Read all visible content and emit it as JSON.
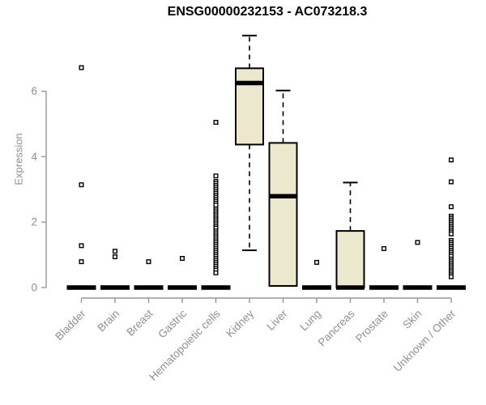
{
  "colors": {
    "box_fill": "#ECE8CD",
    "box_stroke": "#000000",
    "median": "#000000",
    "axis": "#979797",
    "tick_label": "#8f8f8f",
    "title": "#000000",
    "point_fill": "#ffffff",
    "point_stroke": "#000000"
  },
  "chart_data": {
    "type": "box",
    "title": "ENSG00000232153 - AC073218.3",
    "ylabel": "Expression",
    "xlabel": "",
    "grid": false,
    "legend": "none",
    "ylim": [
      0,
      7.9
    ],
    "yticks": [
      0,
      2,
      4,
      6
    ],
    "categories": [
      "Bladder",
      "Brain",
      "Breast",
      "Gastric",
      "Hematopoietic cells",
      "Kidney",
      "Liver",
      "Lung",
      "Pancreas",
      "Prostate",
      "Skin",
      "Unknown / Other"
    ],
    "boxes": [
      {
        "q1": 0,
        "med": 0,
        "q3": 0,
        "lo": 0,
        "hi": 0
      },
      {
        "q1": 0,
        "med": 0,
        "q3": 0,
        "lo": 0,
        "hi": 0
      },
      {
        "q1": 0,
        "med": 0,
        "q3": 0,
        "lo": 0,
        "hi": 0
      },
      {
        "q1": 0,
        "med": 0,
        "q3": 0,
        "lo": 0,
        "hi": 0
      },
      {
        "q1": 0,
        "med": 0,
        "q3": 0,
        "lo": 0,
        "hi": 0
      },
      {
        "q1": 4.37,
        "med": 6.25,
        "q3": 6.7,
        "lo": 1.14,
        "hi": 7.7
      },
      {
        "q1": 0.05,
        "med": 2.79,
        "q3": 4.42,
        "lo": 0.05,
        "hi": 6.02
      },
      {
        "q1": 0,
        "med": 0,
        "q3": 0,
        "lo": 0,
        "hi": 0
      },
      {
        "q1": 0,
        "med": 0,
        "q3": 1.73,
        "lo": 0,
        "hi": 3.21
      },
      {
        "q1": 0,
        "med": 0,
        "q3": 0,
        "lo": 0,
        "hi": 0
      },
      {
        "q1": 0,
        "med": 0,
        "q3": 0,
        "lo": 0,
        "hi": 0
      },
      {
        "q1": 0,
        "med": 0,
        "q3": 0,
        "lo": 0,
        "hi": 0
      }
    ],
    "outliers": [
      [
        6.72,
        3.14,
        1.28,
        0.79
      ],
      [
        1.11,
        0.94
      ],
      [
        0.79
      ],
      [
        0.89
      ],
      [
        5.05,
        3.41,
        3.24,
        3.18,
        3.12,
        3.06,
        3.0,
        2.94,
        2.88,
        2.82,
        2.76,
        2.7,
        2.64,
        2.58,
        2.52,
        2.4,
        2.34,
        2.28,
        2.22,
        2.16,
        2.1,
        2.04,
        1.98,
        1.92,
        1.86,
        1.81,
        1.73,
        1.67,
        1.61,
        1.55,
        1.49,
        1.43,
        1.37,
        1.31,
        1.25,
        1.19,
        1.13,
        1.07,
        1.01,
        0.95,
        0.89,
        0.83,
        0.77,
        0.71,
        0.65,
        0.59,
        0.53,
        0.45
      ],
      [],
      [],
      [
        0.77
      ],
      [],
      [
        1.19
      ],
      [
        1.38
      ],
      [
        3.9,
        3.23,
        2.47,
        2.18,
        2.12,
        2.06,
        2.0,
        1.94,
        1.88,
        1.82,
        1.76,
        1.7,
        1.64,
        1.44,
        1.38,
        1.32,
        1.26,
        1.2,
        1.14,
        1.08,
        1.02,
        0.96,
        0.87,
        0.81,
        0.75,
        0.69,
        0.63,
        0.57,
        0.51,
        0.45,
        0.39,
        0.33
      ]
    ]
  }
}
